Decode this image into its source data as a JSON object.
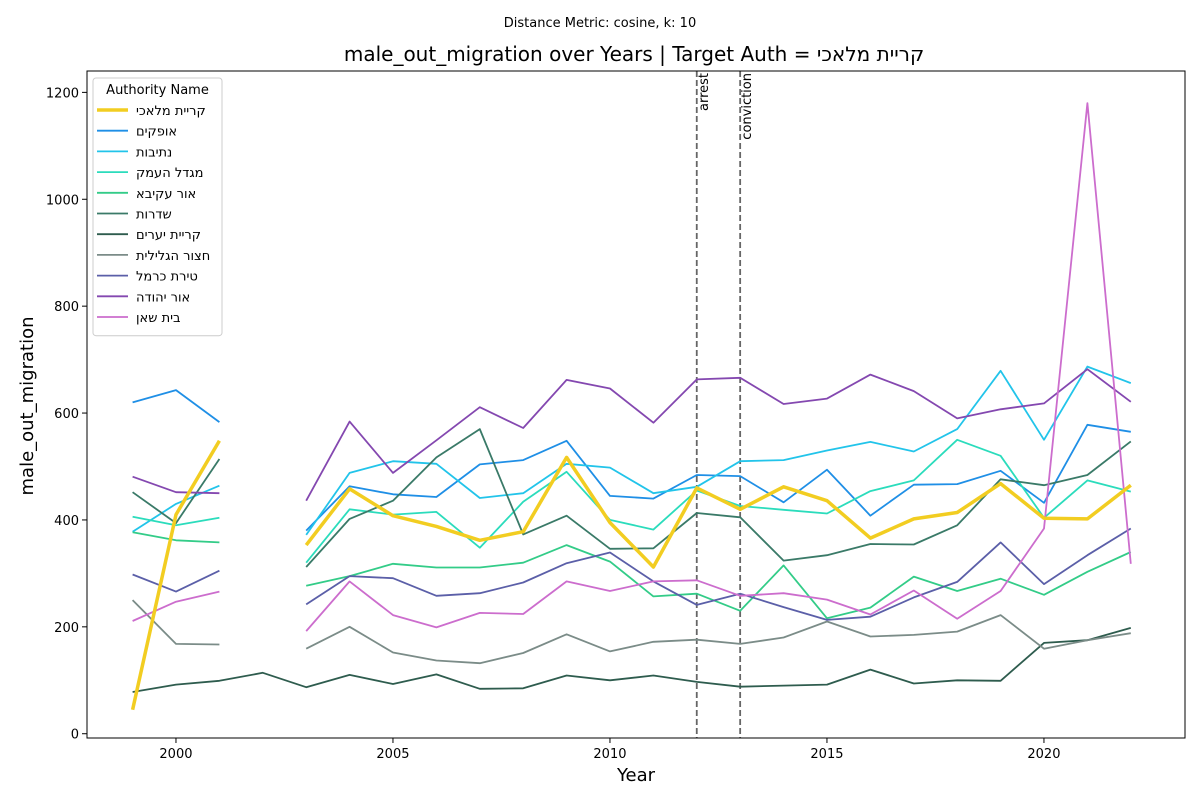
{
  "chart_data": {
    "type": "line",
    "suptitle": "Distance Metric: cosine, k: 10",
    "title": "male_out_migration over Years | Target Auth = קריית מלאכי",
    "xlabel": "Year",
    "ylabel": "male_out_migration",
    "xlim": [
      1997.95,
      2023.25
    ],
    "ylim": [
      -8,
      1240
    ],
    "xticks": [
      2000,
      2005,
      2010,
      2015,
      2020
    ],
    "yticks": [
      0,
      200,
      400,
      600,
      800,
      1000,
      1200
    ],
    "grid": false,
    "legend": {
      "title": "Authority Name",
      "placement": "top-left"
    },
    "x": [
      1999,
      2000,
      2001,
      2002,
      2003,
      2004,
      2005,
      2006,
      2007,
      2008,
      2009,
      2010,
      2011,
      2012,
      2013,
      2014,
      2015,
      2016,
      2017,
      2018,
      2019,
      2020,
      2021,
      2022
    ],
    "series": [
      {
        "name": "קריית מלאכי",
        "color": "#f2cd21",
        "width": 3.5,
        "values": [
          45,
          410,
          548,
          null,
          353,
          458,
          408,
          388,
          362,
          378,
          517,
          395,
          312,
          460,
          420,
          462,
          436,
          366,
          402,
          414,
          468,
          403,
          402,
          465
        ]
      },
      {
        "name": "אופקים",
        "color": "#1f8fe6",
        "width": 1.8,
        "values": [
          620,
          643,
          583,
          null,
          380,
          463,
          448,
          443,
          504,
          512,
          548,
          445,
          440,
          484,
          482,
          433,
          494,
          408,
          466,
          467,
          492,
          432,
          578,
          565
        ]
      },
      {
        "name": "נתיבות",
        "color": "#22c4ea",
        "width": 1.8,
        "values": [
          378,
          430,
          464,
          null,
          372,
          488,
          510,
          505,
          441,
          450,
          505,
          498,
          450,
          462,
          510,
          512,
          530,
          546,
          528,
          570,
          679,
          550,
          687,
          656
        ]
      },
      {
        "name": "מגדל העמק",
        "color": "#2bdcbc",
        "width": 1.8,
        "values": [
          406,
          390,
          404,
          null,
          320,
          420,
          410,
          415,
          348,
          434,
          490,
          400,
          382,
          455,
          426,
          419,
          412,
          454,
          474,
          550,
          520,
          404,
          474,
          453
        ]
      },
      {
        "name": "אור עקיבא",
        "color": "#33cc88",
        "width": 1.8,
        "values": [
          377,
          362,
          358,
          null,
          277,
          295,
          318,
          311,
          311,
          320,
          353,
          322,
          257,
          262,
          230,
          315,
          216,
          236,
          294,
          267,
          290,
          260,
          303,
          340
        ]
      },
      {
        "name": "שדרות",
        "color": "#3a7a68",
        "width": 1.8,
        "values": [
          452,
          394,
          514,
          null,
          312,
          402,
          436,
          517,
          570,
          373,
          408,
          346,
          347,
          413,
          405,
          324,
          334,
          355,
          354,
          390,
          476,
          465,
          484,
          547
        ]
      },
      {
        "name": "קריית יערים",
        "color": "#2e5c4e",
        "width": 1.8,
        "values": [
          78,
          92,
          99,
          114,
          87,
          110,
          93,
          111,
          84,
          85,
          109,
          100,
          109,
          97,
          88,
          90,
          92,
          120,
          94,
          100,
          99,
          170,
          175,
          198
        ]
      },
      {
        "name": "חצור הגלילית",
        "color": "#7b8c88",
        "width": 1.8,
        "values": [
          250,
          168,
          167,
          null,
          159,
          200,
          152,
          137,
          132,
          151,
          186,
          154,
          172,
          176,
          168,
          180,
          210,
          182,
          185,
          191,
          222,
          159,
          175,
          188
        ]
      },
      {
        "name": "טירת כרמל",
        "color": "#5b5fa8",
        "width": 1.8,
        "values": [
          298,
          266,
          305,
          null,
          242,
          295,
          291,
          258,
          263,
          283,
          319,
          339,
          285,
          241,
          262,
          237,
          213,
          219,
          255,
          284,
          358,
          280,
          334,
          384
        ]
      },
      {
        "name": "אור יהודה",
        "color": "#8448b0",
        "width": 1.8,
        "values": [
          481,
          452,
          450,
          null,
          436,
          584,
          488,
          549,
          611,
          572,
          662,
          646,
          582,
          663,
          666,
          617,
          627,
          672,
          641,
          590,
          607,
          618,
          682,
          621
        ]
      },
      {
        "name": "בית שאן",
        "color": "#cc6dcd",
        "width": 1.8,
        "values": [
          211,
          247,
          266,
          null,
          192,
          285,
          222,
          199,
          226,
          224,
          285,
          267,
          285,
          287,
          258,
          263,
          251,
          223,
          268,
          215,
          267,
          384,
          1180,
          318
        ]
      }
    ],
    "vlines": [
      {
        "x": 2012,
        "label": "arrest"
      },
      {
        "x": 2013,
        "label": "conviction"
      }
    ]
  }
}
